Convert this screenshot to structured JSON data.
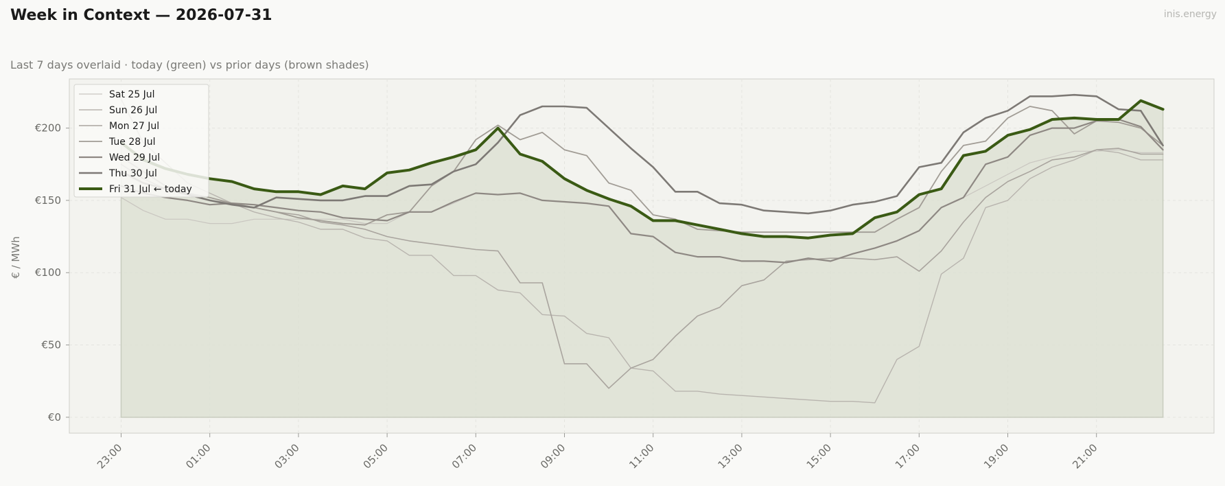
{
  "header": {
    "title": "Week in Context — 2026-07-31",
    "subtitle": "Last 7 days overlaid  ·  today (green) vs prior days (brown shades)",
    "brand": "inis.energy"
  },
  "chart_data": {
    "type": "line",
    "xlabel": "",
    "ylabel": "€ / MWh",
    "x_start": "23:00",
    "x_step_hours": 0.5,
    "x_tick_labels": [
      "23:00",
      "01:00",
      "03:00",
      "05:00",
      "07:00",
      "09:00",
      "11:00",
      "13:00",
      "15:00",
      "17:00",
      "19:00",
      "21:00"
    ],
    "y_ticks": [
      0,
      50,
      100,
      150,
      200
    ],
    "y_tick_labels": [
      "€0",
      "€50",
      "€100",
      "€150",
      "€200"
    ],
    "ylim": [
      -11,
      234
    ],
    "grid": true,
    "legend_position": "top-left",
    "colors": {
      "background": "#f9f9f7",
      "plot_background": "#f3f3ef",
      "today_fill": "#dde1d3"
    },
    "series": [
      {
        "name": "Sat 25 Jul",
        "color": "#c9c6c0",
        "width": 1.2,
        "values": [
          152,
          143,
          137,
          137,
          134,
          134,
          137,
          137,
          137,
          137,
          137,
          134,
          134,
          142,
          142,
          148,
          155,
          154,
          155,
          150,
          149,
          148,
          146,
          127,
          125,
          114,
          111,
          111,
          108,
          108,
          107,
          110,
          108,
          113,
          117,
          122,
          129,
          145,
          152,
          160,
          168,
          176,
          180,
          184,
          184,
          185,
          183,
          183
        ]
      },
      {
        "name": "Sun 26 Jul",
        "color": "#b8b4ae",
        "width": 1.4,
        "values": [
          220,
          190,
          176,
          162,
          155,
          148,
          142,
          138,
          135,
          130,
          130,
          124,
          122,
          112,
          112,
          98,
          98,
          88,
          86,
          71,
          70,
          58,
          55,
          34,
          32,
          18,
          18,
          16,
          15,
          14,
          13,
          12,
          11,
          11,
          10,
          40,
          49,
          99,
          110,
          145,
          150,
          165,
          173,
          178,
          185,
          183,
          178,
          178
        ]
      },
      {
        "name": "Mon 27 Jul",
        "color": "#a9a49e",
        "width": 1.6,
        "values": [
          175,
          165,
          158,
          155,
          150,
          148,
          145,
          142,
          140,
          135,
          133,
          130,
          125,
          122,
          120,
          118,
          116,
          115,
          93,
          93,
          37,
          37,
          20,
          34,
          40,
          56,
          70,
          76,
          91,
          95,
          108,
          109,
          110,
          110,
          109,
          111,
          101,
          115,
          135,
          152,
          163,
          170,
          178,
          180,
          185,
          186,
          182,
          182
        ]
      },
      {
        "name": "Tue 28 Jul",
        "color": "#a19c95",
        "width": 1.8,
        "values": [
          180,
          170,
          160,
          155,
          152,
          148,
          145,
          142,
          138,
          136,
          134,
          133,
          140,
          142,
          160,
          170,
          192,
          202,
          192,
          197,
          185,
          181,
          162,
          157,
          140,
          137,
          130,
          129,
          128,
          128,
          128,
          128,
          128,
          128,
          128,
          137,
          145,
          170,
          188,
          191,
          207,
          215,
          212,
          196,
          205,
          204,
          200,
          188
        ]
      },
      {
        "name": "Wed 29 Jul",
        "color": "#8e8883",
        "width": 2.2,
        "values": [
          160,
          155,
          152,
          150,
          147,
          148,
          147,
          145,
          143,
          142,
          138,
          137,
          136,
          142,
          142,
          149,
          155,
          154,
          155,
          150,
          149,
          148,
          146,
          127,
          125,
          114,
          111,
          111,
          108,
          108,
          107,
          110,
          108,
          113,
          117,
          122,
          129,
          145,
          152,
          175,
          180,
          195,
          200,
          200,
          205,
          206,
          201,
          185
        ]
      },
      {
        "name": "Thu 30 Jul",
        "color": "#7d7975",
        "width": 2.6,
        "values": [
          170,
          162,
          158,
          154,
          150,
          147,
          145,
          152,
          151,
          150,
          150,
          153,
          153,
          160,
          161,
          170,
          175,
          190,
          209,
          215,
          215,
          214,
          200,
          186,
          173,
          156,
          156,
          148,
          147,
          143,
          142,
          141,
          143,
          147,
          149,
          153,
          173,
          176,
          197,
          207,
          212,
          222,
          222,
          223,
          222,
          213,
          212,
          188
        ]
      },
      {
        "name": "Fri 31 Jul",
        "color": "#3a5a14",
        "width": 4,
        "today": true,
        "legend_suffix": "  ← today",
        "values": [
          190,
          178,
          172,
          168,
          165,
          163,
          158,
          156,
          156,
          154,
          160,
          158,
          169,
          171,
          176,
          180,
          185,
          200,
          182,
          177,
          165,
          157,
          151,
          146,
          136,
          136,
          133,
          130,
          127,
          125,
          125,
          124,
          126,
          127,
          138,
          142,
          154,
          158,
          181,
          184,
          195,
          199,
          206,
          207,
          206,
          206,
          219,
          213
        ]
      }
    ]
  }
}
